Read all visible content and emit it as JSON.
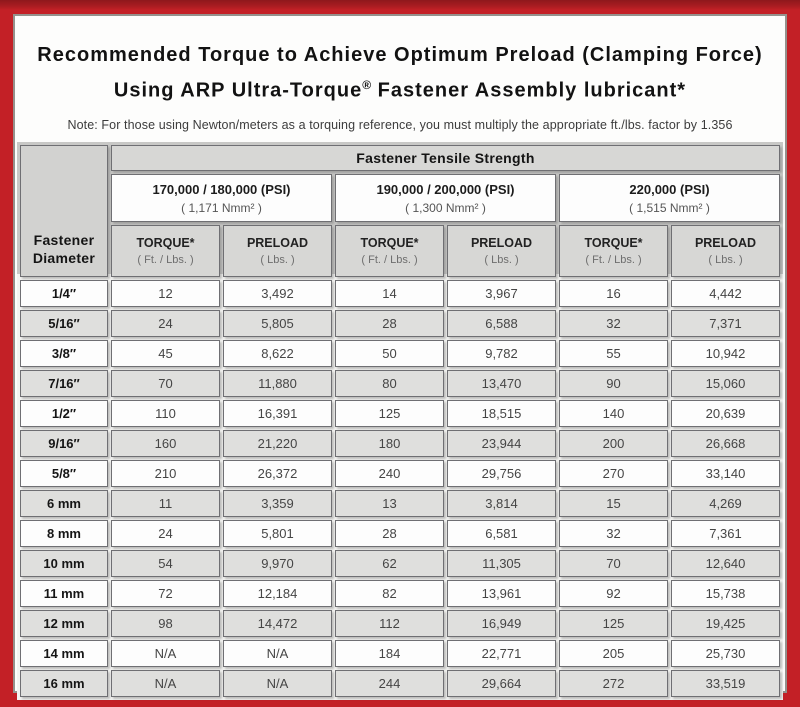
{
  "title": {
    "line1": "Recommended Torque to Achieve Optimum Preload (Clamping Force)",
    "line2_pre": "Using ARP Ultra-Torque",
    "line2_reg": "®",
    "line2_post": " Fastener Assembly lubricant*"
  },
  "note": "Note: For those using Newton/meters as a torquing reference, you must multiply the appropriate ft./lbs. factor by 1.356",
  "table": {
    "corner_line1": "Fastener",
    "corner_line2": "Diameter",
    "tensile_header": "Fastener Tensile Strength",
    "groups": [
      {
        "psi": "170,000 / 180,000 (PSI)",
        "nmm": "( 1,171 Nmm² )"
      },
      {
        "psi": "190,000 / 200,000 (PSI)",
        "nmm": "( 1,300 Nmm² )"
      },
      {
        "psi": "220,000 (PSI)",
        "nmm": "( 1,515 Nmm² )"
      }
    ],
    "col_headers": {
      "torque": "TORQUE*",
      "torque_sub": "( Ft. / Lbs. )",
      "preload": "PRELOAD",
      "preload_sub": "( Lbs. )"
    },
    "rows": [
      {
        "dia": "1/4″",
        "values": [
          "12",
          "3,492",
          "14",
          "3,967",
          "16",
          "4,442"
        ]
      },
      {
        "dia": "5/16″",
        "values": [
          "24",
          "5,805",
          "28",
          "6,588",
          "32",
          "7,371"
        ]
      },
      {
        "dia": "3/8″",
        "values": [
          "45",
          "8,622",
          "50",
          "9,782",
          "55",
          "10,942"
        ]
      },
      {
        "dia": "7/16″",
        "values": [
          "70",
          "11,880",
          "80",
          "13,470",
          "90",
          "15,060"
        ]
      },
      {
        "dia": "1/2″",
        "values": [
          "110",
          "16,391",
          "125",
          "18,515",
          "140",
          "20,639"
        ]
      },
      {
        "dia": "9/16″",
        "values": [
          "160",
          "21,220",
          "180",
          "23,944",
          "200",
          "26,668"
        ]
      },
      {
        "dia": "5/8″",
        "values": [
          "210",
          "26,372",
          "240",
          "29,756",
          "270",
          "33,140"
        ]
      },
      {
        "dia": "6 mm",
        "values": [
          "11",
          "3,359",
          "13",
          "3,814",
          "15",
          "4,269"
        ]
      },
      {
        "dia": "8 mm",
        "values": [
          "24",
          "5,801",
          "28",
          "6,581",
          "32",
          "7,361"
        ]
      },
      {
        "dia": "10 mm",
        "values": [
          "54",
          "9,970",
          "62",
          "11,305",
          "70",
          "12,640"
        ]
      },
      {
        "dia": "11 mm",
        "values": [
          "72",
          "12,184",
          "82",
          "13,961",
          "92",
          "15,738"
        ]
      },
      {
        "dia": "12 mm",
        "values": [
          "98",
          "14,472",
          "112",
          "16,949",
          "125",
          "19,425"
        ]
      },
      {
        "dia": "14 mm",
        "values": [
          "N/A",
          "N/A",
          "184",
          "22,771",
          "205",
          "25,730"
        ]
      },
      {
        "dia": "16 mm",
        "values": [
          "N/A",
          "N/A",
          "244",
          "29,664",
          "272",
          "33,519"
        ]
      }
    ]
  },
  "colors": {
    "frame_red": "#c32026",
    "frame_red_dark": "#8e181c",
    "header_gray": "#d7d7d5",
    "row_alt_gray": "#dfdfdd",
    "cell_border": "#6f6f73"
  }
}
